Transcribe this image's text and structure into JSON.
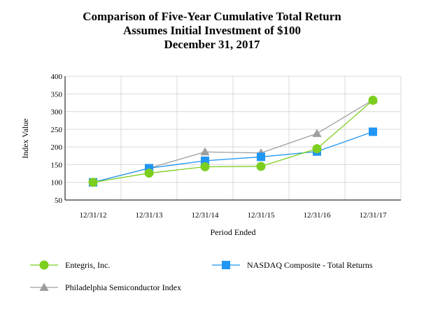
{
  "chart_data": {
    "type": "line",
    "title": "Comparison of Five-Year Cumulative Total Return",
    "subtitle": "Assumes Initial Investment of $100",
    "date_line": "December 31, 2017",
    "xlabel": "Period Ended",
    "ylabel": "Index Value",
    "categories": [
      "12/31/12",
      "12/31/13",
      "12/31/14",
      "12/31/15",
      "12/31/16",
      "12/31/17"
    ],
    "ylim": [
      50,
      400
    ],
    "yticks": [
      50,
      100,
      150,
      200,
      250,
      300,
      350,
      400
    ],
    "grid": true,
    "legend_position": "bottom",
    "series": [
      {
        "name": "Entegris, Inc.",
        "color": "#7ccf1e",
        "marker": "circle",
        "values": [
          100,
          126,
          144,
          145,
          195,
          332
        ]
      },
      {
        "name": "NASDAQ Composite - Total Returns",
        "color": "#2196f3",
        "marker": "square",
        "values": [
          100,
          140,
          161,
          172,
          187,
          243
        ]
      },
      {
        "name": "Philadelphia Semiconductor Index",
        "color": "#9e9e9e",
        "marker": "triangle",
        "values": [
          100,
          140,
          186,
          183,
          238,
          333
        ]
      }
    ]
  }
}
